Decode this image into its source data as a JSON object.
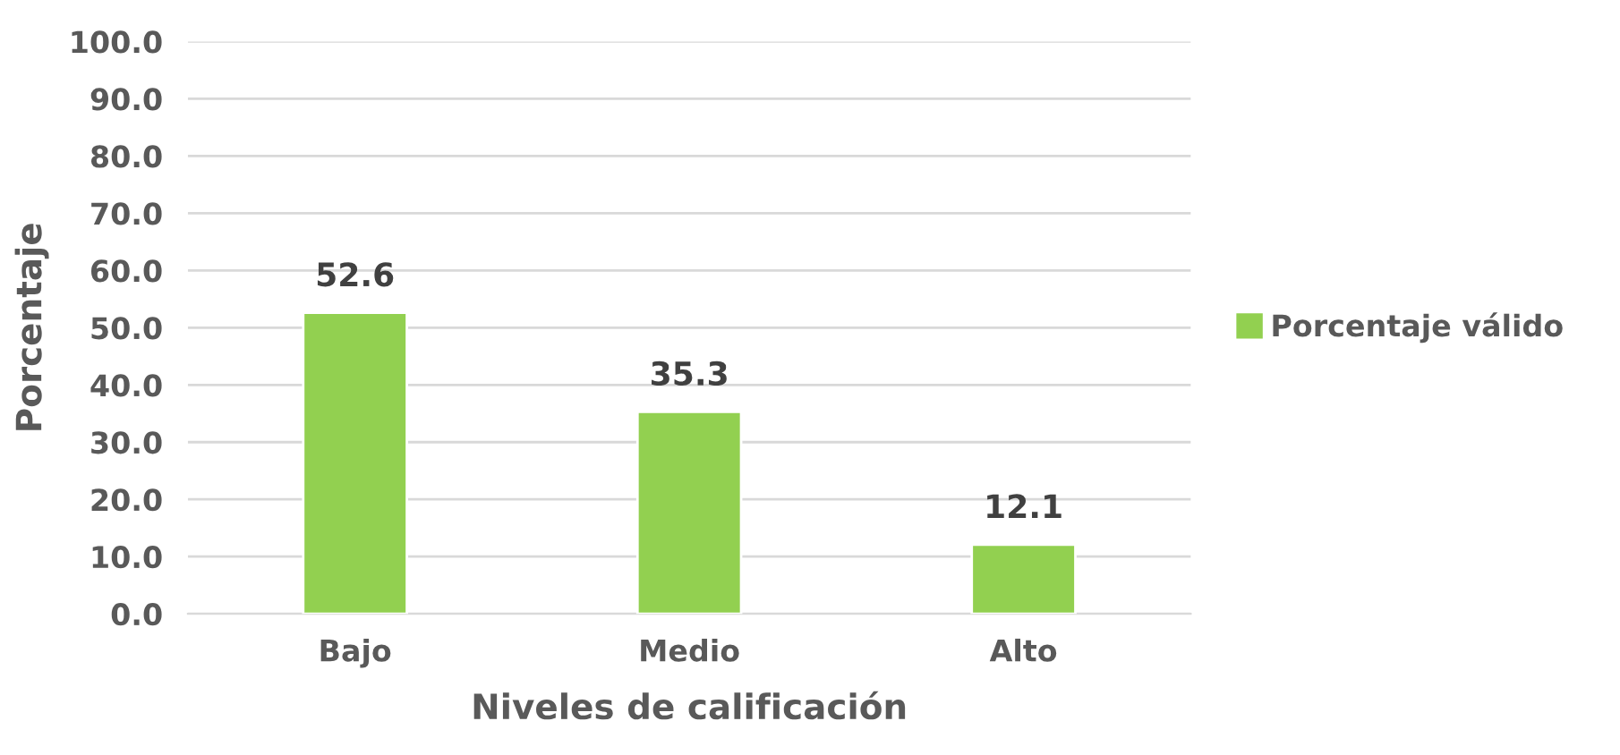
{
  "chart_data": {
    "type": "bar",
    "xlabel": "Niveles de calificación",
    "ylabel": "Porcentaje",
    "categories": [
      "Bajo",
      "Medio",
      "Alto"
    ],
    "series": [
      {
        "name": "Porcentaje válido",
        "color": "#92d050",
        "values": [
          52.6,
          35.3,
          12.1
        ]
      }
    ],
    "ylim": [
      0,
      100
    ],
    "yticks": [
      {
        "value": 0,
        "label": "0.0"
      },
      {
        "value": 10,
        "label": "10.0"
      },
      {
        "value": 20,
        "label": "20.0"
      },
      {
        "value": 30,
        "label": "30.0"
      },
      {
        "value": 40,
        "label": "40.0"
      },
      {
        "value": 50,
        "label": "50.0"
      },
      {
        "value": 60,
        "label": "60.0"
      },
      {
        "value": 70,
        "label": "70.0"
      },
      {
        "value": 80,
        "label": "80.0"
      },
      {
        "value": 90,
        "label": "90.0"
      },
      {
        "value": 100,
        "label": "100.0"
      }
    ],
    "grid": "y",
    "legend": "right",
    "data_labels": true
  }
}
